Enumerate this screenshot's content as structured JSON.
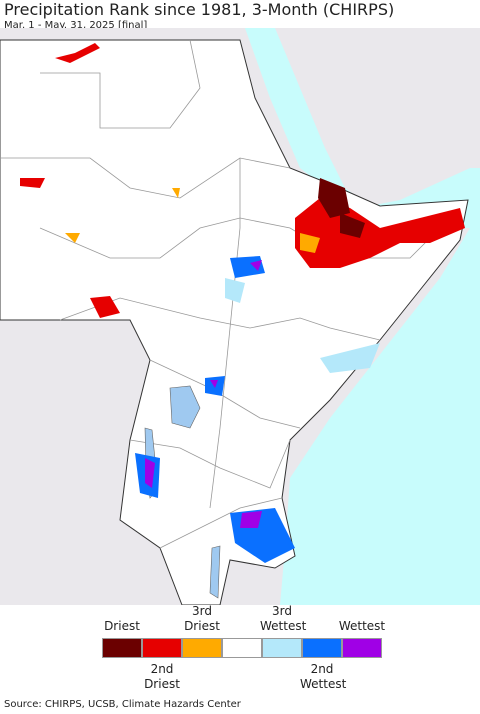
{
  "header": {
    "title": "Precipitation Rank since 1981, 3-Month (CHIRPS)",
    "subtitle": "Mar. 1 - May. 31, 2025 [final]"
  },
  "legend": {
    "items": [
      {
        "label": "Driest",
        "color": "#6b0000"
      },
      {
        "label": "2nd Driest",
        "color": "#e60000"
      },
      {
        "label": "3rd Driest",
        "color": "#ffaa00"
      },
      {
        "color": "#ffffff"
      },
      {
        "label": "3rd Wettest",
        "color": "#b4e8fa"
      },
      {
        "label": "2nd Wettest",
        "color": "#0a70ff"
      },
      {
        "label": "Wettest",
        "color": "#a000e6"
      }
    ]
  },
  "source": "Source: CHIRPS, UCSB, Climate Hazards Center"
}
